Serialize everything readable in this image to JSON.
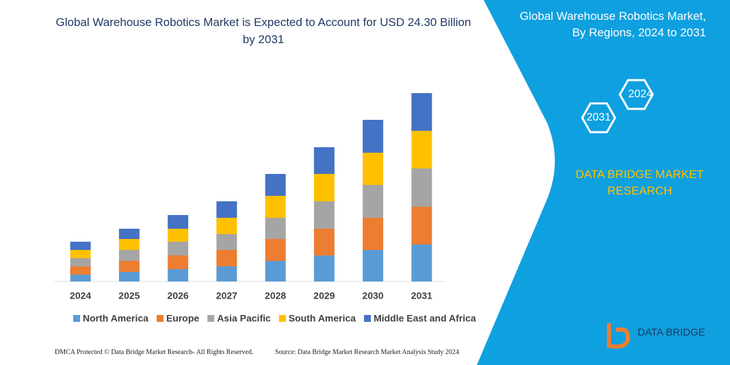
{
  "chart_data": {
    "type": "bar",
    "stacked": true,
    "title": "Global Warehouse Robotics Market is Expected to Account for USD 24.30 Billion by 2031",
    "categories": [
      "2024",
      "2025",
      "2026",
      "2027",
      "2028",
      "2029",
      "2030",
      "2031"
    ],
    "series": [
      {
        "name": "North America",
        "color": "#5b9bd5",
        "values": [
          10,
          14,
          18,
          22,
          30,
          38,
          46,
          54
        ]
      },
      {
        "name": "Europe",
        "color": "#ed7d31",
        "values": [
          12,
          16,
          20,
          24,
          32,
          39,
          47,
          55
        ]
      },
      {
        "name": "Asia Pacific",
        "color": "#a5a5a5",
        "values": [
          12,
          16,
          20,
          23,
          31,
          40,
          48,
          56
        ]
      },
      {
        "name": "South America",
        "color": "#ffc000",
        "values": [
          12,
          16,
          19,
          24,
          32,
          40,
          47,
          55
        ]
      },
      {
        "name": "Middle East and Africa",
        "color": "#4472c4",
        "values": [
          12,
          15,
          20,
          24,
          32,
          39,
          48,
          55
        ]
      }
    ],
    "ylim": [
      0,
      280
    ],
    "legend": "bottom"
  },
  "panel": {
    "title": "Global Warehouse Robotics Market, By Regions, 2024 to 2031",
    "hex_labels": [
      "2024",
      "2031"
    ],
    "brand": "DATA BRIDGE MARKET RESEARCH",
    "logo": "DATA BRIDGE"
  },
  "footer": {
    "left": "DMCA Protected © Data Bridge Market Research-  All Rights Reserved.",
    "right": "Source: Data Bridge Market Research  Market Analysis Study 2024"
  }
}
